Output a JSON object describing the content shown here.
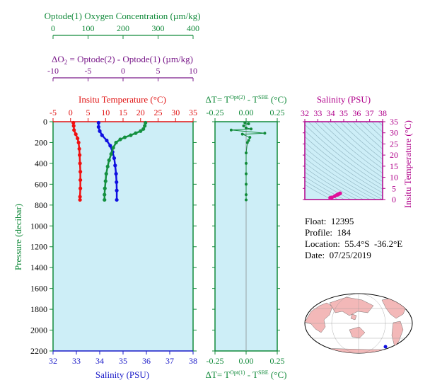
{
  "colors": {
    "oxygen": "#118a3a",
    "delta_o2": "#7a1a8a",
    "temperature": "#e01010",
    "salinity": "#1a1ac8",
    "dt": "#118a3a",
    "salinity_panel": "#b0008a",
    "profile_green": "#149040",
    "profile_blue": "#1010e0",
    "profile_red": "#f01010",
    "panel_fill": "#cdeef7",
    "magenta": "#e0109a",
    "land": "#f3b8b8",
    "map_ocean": "#ffffff",
    "grid": "#808080"
  },
  "info": {
    "float": "Float:  12395",
    "profile": "Profile:  184",
    "location": "Location:  55.4°S  -36.2°E",
    "date": "Date:  07/25/2019"
  },
  "chart_data": [
    {
      "type": "line",
      "panel": "main-profile",
      "ylabel": "Pressure (decibar)",
      "ylim": [
        2200,
        0
      ],
      "yticks": [
        0,
        200,
        400,
        600,
        800,
        1000,
        1200,
        1400,
        1600,
        1800,
        2000,
        2200
      ],
      "axes": {
        "oxygen": {
          "title": "Optode(1) Oxygen Concentration (µm/kg)",
          "lim": [
            0,
            400
          ],
          "ticks": [
            0,
            100,
            200,
            300,
            400
          ]
        },
        "delta_o2": {
          "title_prefix": "ΔO",
          "title_sub": "2",
          "title_rest": " = Optode(2) - Optode(1)   (µm/kg)",
          "lim": [
            -10,
            10
          ],
          "ticks": [
            -10,
            -5,
            0,
            5,
            10
          ]
        },
        "temperature": {
          "title": "Insitu Temperature (°C)",
          "lim": [
            -5,
            35
          ],
          "ticks": [
            -5,
            0,
            5,
            10,
            15,
            20,
            25,
            30,
            35
          ]
        },
        "salinity": {
          "title": "Salinity (PSU)",
          "lim": [
            32,
            38
          ],
          "ticks": [
            32,
            33,
            34,
            35,
            36,
            37,
            38
          ]
        }
      },
      "series": [
        {
          "axis": "temperature",
          "style": "dots",
          "color_key": "profile_red",
          "points": [
            [
              0.8,
              10
            ],
            [
              0.9,
              40
            ],
            [
              1.0,
              80
            ],
            [
              1.5,
              120
            ],
            [
              2.0,
              160
            ],
            [
              2.3,
              200
            ],
            [
              2.5,
              260
            ],
            [
              2.6,
              320
            ],
            [
              2.7,
              400
            ],
            [
              2.8,
              480
            ],
            [
              2.8,
              560
            ],
            [
              2.8,
              640
            ],
            [
              2.7,
              720
            ],
            [
              2.7,
              750
            ]
          ]
        },
        {
          "axis": "salinity",
          "style": "dots",
          "color_key": "profile_blue",
          "points": [
            [
              33.95,
              10
            ],
            [
              33.95,
              50
            ],
            [
              34.0,
              90
            ],
            [
              34.1,
              130
            ],
            [
              34.3,
              180
            ],
            [
              34.45,
              230
            ],
            [
              34.55,
              290
            ],
            [
              34.62,
              350
            ],
            [
              34.66,
              420
            ],
            [
              34.7,
              500
            ],
            [
              34.72,
              580
            ],
            [
              34.73,
              660
            ],
            [
              34.73,
              750
            ]
          ]
        },
        {
          "axis": "oxygen",
          "style": "dots",
          "color_key": "profile_green",
          "points": [
            [
              264,
              10
            ],
            [
              262,
              40
            ],
            [
              258,
              70
            ],
            [
              250,
              90
            ],
            [
              236,
              110
            ],
            [
              222,
              130
            ],
            [
              205,
              150
            ],
            [
              192,
              170
            ],
            [
              180,
              200
            ],
            [
              172,
              250
            ],
            [
              166,
              310
            ],
            [
              160,
              370
            ],
            [
              156,
              430
            ],
            [
              152,
              500
            ],
            [
              150,
              570
            ],
            [
              148,
              640
            ],
            [
              147,
              700
            ],
            [
              147,
              750
            ]
          ]
        }
      ]
    },
    {
      "type": "scatter",
      "panel": "delta-t",
      "title_top": "ΔT= T",
      "title_top_sup": "Opt(2)",
      "title_top_mid": " - T",
      "title_top_sup2": "SBE",
      "title_top_end": " (°C)",
      "title_bottom": "ΔT= T",
      "title_bottom_sup": "Opt(1)",
      "title_bottom_mid": " - T",
      "title_bottom_sup2": "SBE",
      "title_bottom_end": " (°C)",
      "xlim": [
        -0.25,
        0.25
      ],
      "xticks": [
        "-0.25",
        "0.00",
        "0.25"
      ],
      "ylim": [
        2200,
        0
      ],
      "series": [
        {
          "color_key": "dt",
          "points": [
            [
              -0.12,
              80
            ],
            [
              -0.02,
              40
            ],
            [
              0.0,
              60
            ],
            [
              0.04,
              70
            ],
            [
              0.15,
              110
            ],
            [
              0.03,
              150
            ],
            [
              0.01,
              200
            ],
            [
              0.0,
              300
            ],
            [
              0.0,
              400
            ],
            [
              0.0,
              500
            ],
            [
              0.0,
              600
            ],
            [
              0.0,
              700
            ],
            [
              0.0,
              750
            ],
            [
              -0.01,
              10
            ],
            [
              0.02,
              20
            ],
            [
              -0.03,
              120
            ],
            [
              0.02,
              180
            ]
          ]
        }
      ]
    },
    {
      "type": "scatter",
      "panel": "ts-diagram",
      "title": "Salinity (PSU)",
      "xlim": [
        32,
        38
      ],
      "xticks": [
        32,
        33,
        34,
        35,
        36,
        37,
        38
      ],
      "ylabel": "Insitu Temperature (°C)",
      "ylim": [
        0,
        35
      ],
      "yticks": [
        0,
        5,
        10,
        15,
        20,
        25,
        30,
        35
      ],
      "series": [
        {
          "color_key": "magenta",
          "points": [
            [
              33.95,
              0.8
            ],
            [
              34.1,
              1.0
            ],
            [
              34.3,
              1.5
            ],
            [
              34.45,
              2.0
            ],
            [
              34.55,
              2.3
            ],
            [
              34.62,
              2.5
            ],
            [
              34.66,
              2.6
            ],
            [
              34.7,
              2.7
            ],
            [
              34.72,
              2.8
            ],
            [
              34.73,
              2.8
            ],
            [
              34.6,
              2.4
            ],
            [
              34.5,
              2.1
            ]
          ]
        }
      ]
    }
  ]
}
